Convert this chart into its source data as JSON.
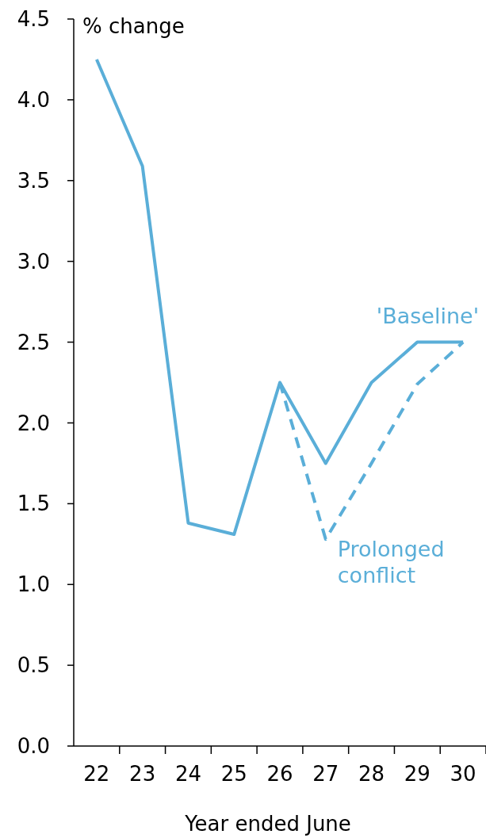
{
  "chart_data": {
    "type": "line",
    "ylabel": "% change",
    "xlabel": "Year ended June",
    "categories": [
      "22",
      "23",
      "24",
      "25",
      "26",
      "27",
      "28",
      "29",
      "30"
    ],
    "series": [
      {
        "name": "'Baseline'",
        "color": "#5aaed8",
        "line_style": "solid",
        "values": [
          4.25,
          3.59,
          1.38,
          1.31,
          2.25,
          1.75,
          2.25,
          2.5,
          2.5
        ]
      },
      {
        "name": "Prolonged conflict",
        "color": "#5aaed8",
        "line_style": "dashed",
        "values": [
          null,
          null,
          null,
          null,
          2.25,
          1.28,
          1.75,
          2.24,
          2.5
        ]
      }
    ],
    "ylim": [
      0,
      4.5
    ],
    "yticks": [
      {
        "value": 0,
        "label": "0.0"
      },
      {
        "value": 0.5,
        "label": "0.5"
      },
      {
        "value": 1,
        "label": "1.0"
      },
      {
        "value": 1.5,
        "label": "1.5"
      },
      {
        "value": 2,
        "label": "2.0"
      },
      {
        "value": 2.5,
        "label": "2.5"
      },
      {
        "value": 3,
        "label": "3.0"
      },
      {
        "value": 3.5,
        "label": "3.5"
      },
      {
        "value": 4,
        "label": "4.0"
      },
      {
        "value": 4.5,
        "label": "4.5"
      }
    ],
    "grid": false
  }
}
